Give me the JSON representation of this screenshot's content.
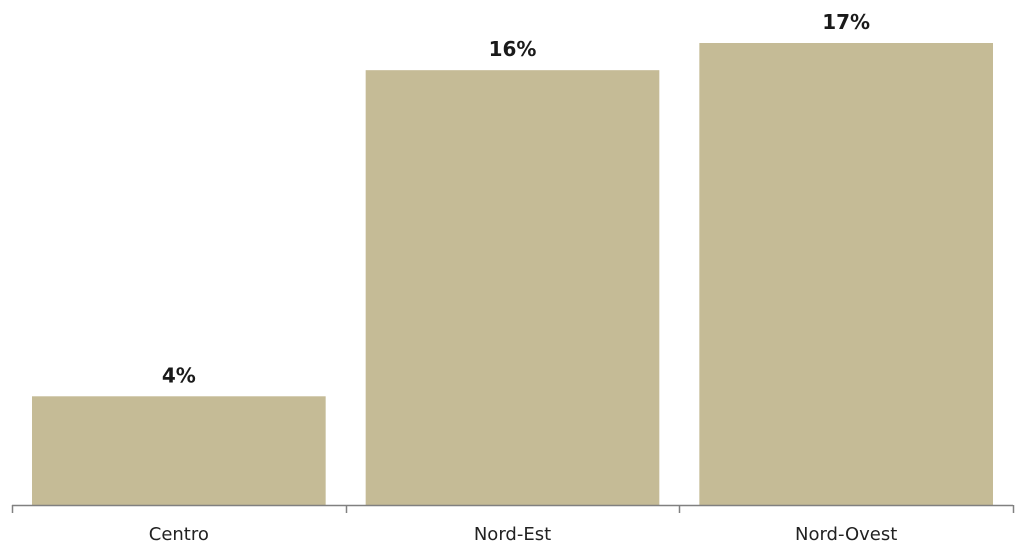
{
  "chart_data": {
    "type": "bar",
    "categories": [
      "Centro",
      "Nord-Est",
      "Nord-Ovest"
    ],
    "values": [
      4,
      16,
      17
    ],
    "data_labels": [
      "4%",
      "16%",
      "17%"
    ],
    "unit": "%",
    "ylim": [
      0,
      17
    ],
    "grid": false,
    "legend": "none",
    "bar_color": "#c5bb96",
    "axis_color": "#808080"
  }
}
